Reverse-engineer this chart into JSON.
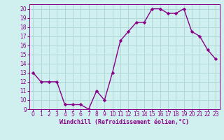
{
  "x": [
    0,
    1,
    2,
    3,
    4,
    5,
    6,
    7,
    8,
    9,
    10,
    11,
    12,
    13,
    14,
    15,
    16,
    17,
    18,
    19,
    20,
    21,
    22,
    23
  ],
  "y": [
    13,
    12,
    12,
    12,
    9.5,
    9.5,
    9.5,
    9,
    11,
    10,
    13,
    16.5,
    17.5,
    18.5,
    18.5,
    20,
    20,
    19.5,
    19.5,
    20,
    17.5,
    17,
    15.5,
    14.5
  ],
  "line_color": "#880088",
  "marker_color": "#880088",
  "bg_color": "#d0f0f0",
  "grid_color": "#b0d8d8",
  "xlabel": "Windchill (Refroidissement éolien,°C)",
  "ylabel": "",
  "xlim": [
    -0.5,
    23.5
  ],
  "ylim": [
    9,
    20.5
  ],
  "yticks": [
    9,
    10,
    11,
    12,
    13,
    14,
    15,
    16,
    17,
    18,
    19,
    20
  ],
  "xticks": [
    0,
    1,
    2,
    3,
    4,
    5,
    6,
    7,
    8,
    9,
    10,
    11,
    12,
    13,
    14,
    15,
    16,
    17,
    18,
    19,
    20,
    21,
    22,
    23
  ],
  "xlabel_color": "#880088",
  "axis_color": "#880088",
  "tick_color": "#880088",
  "tick_fontsize": 5.5,
  "xlabel_fontsize": 6.0,
  "linewidth": 1.0,
  "markersize": 2.2
}
